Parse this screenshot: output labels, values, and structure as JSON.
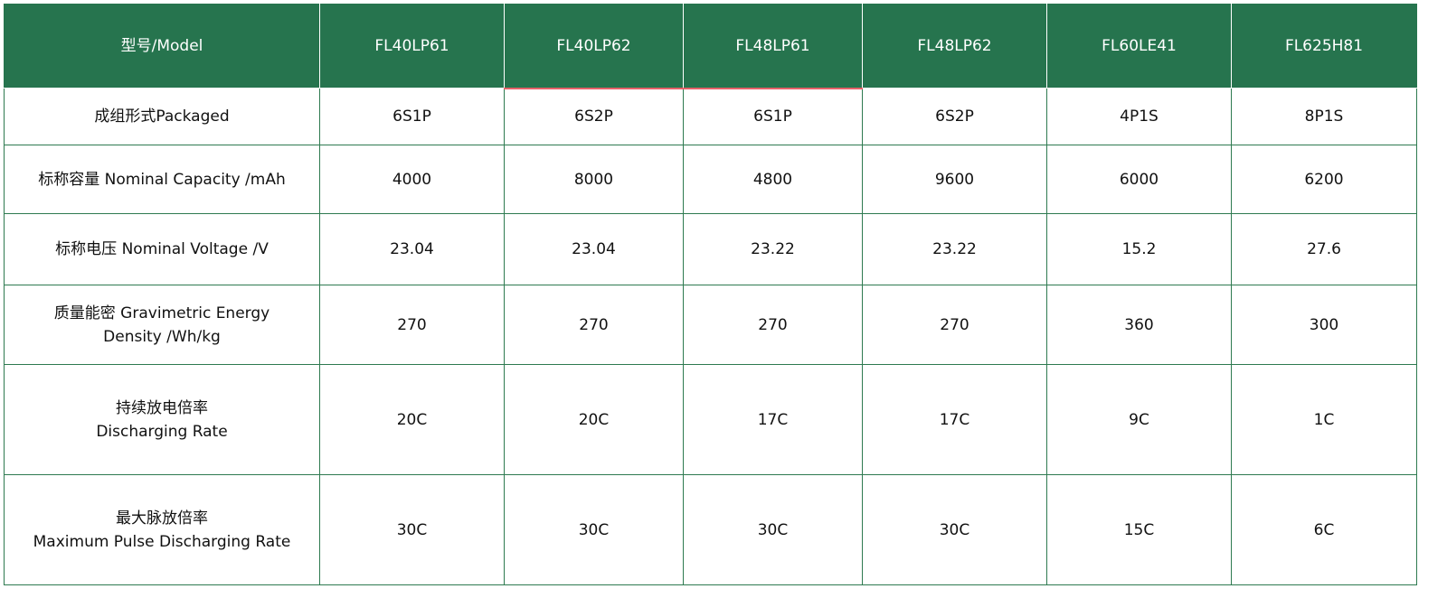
{
  "colors": {
    "header_bg": "#26744e",
    "border": "#2e7a50",
    "highlight": "#e8626a"
  },
  "header": {
    "label": "型号/Model",
    "models": [
      "FL40LP61",
      "FL40LP62",
      "FL48LP61",
      "FL48LP62",
      "FL60LE41",
      "FL625H81"
    ]
  },
  "rows": [
    {
      "label": "成组形式Packaged",
      "values": [
        "6S1P",
        "6S2P",
        "6S1P",
        "6S2P",
        "4P1S",
        "8P1S"
      ]
    },
    {
      "label": "标称容量 Nominal Capacity /mAh",
      "values": [
        "4000",
        "8000",
        "4800",
        "9600",
        "6000",
        "6200"
      ]
    },
    {
      "label": "标称电压 Nominal Voltage /V",
      "values": [
        "23.04",
        "23.04",
        "23.22",
        "23.22",
        "15.2",
        "27.6"
      ]
    },
    {
      "label": "质量能密 Gravimetric Energy\nDensity /Wh/kg",
      "values": [
        "270",
        "270",
        "270",
        "270",
        "360",
        "300"
      ]
    },
    {
      "label": "持续放电倍率\nDischarging Rate",
      "values": [
        "20C",
        "20C",
        "17C",
        "17C",
        "9C",
        "1C"
      ]
    },
    {
      "label": "最大脉放倍率\nMaximum Pulse Discharging Rate",
      "values": [
        "30C",
        "30C",
        "30C",
        "30C",
        "15C",
        "6C"
      ]
    }
  ]
}
